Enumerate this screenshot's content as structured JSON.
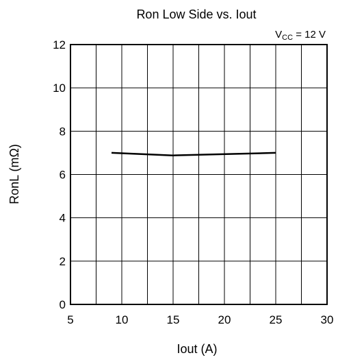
{
  "chart_data": {
    "type": "line",
    "title": "Ron Low Side vs. Iout",
    "annotation": {
      "main": "V",
      "sub": "CC",
      "rest": " = 12 V"
    },
    "xlabel": "Iout  (A)",
    "ylabel": "RonL  (mΩ)",
    "xlim": [
      5,
      30
    ],
    "ylim": [
      0,
      12
    ],
    "x_ticks": [
      5,
      10,
      15,
      20,
      25,
      30
    ],
    "y_ticks": [
      0,
      2,
      4,
      6,
      8,
      10,
      12
    ],
    "x_minor_step": 2.5,
    "grid": true,
    "line_color": "#000000",
    "series": [
      {
        "x": [
          9,
          15,
          25
        ],
        "y": [
          7.0,
          6.88,
          7.0
        ]
      }
    ]
  }
}
